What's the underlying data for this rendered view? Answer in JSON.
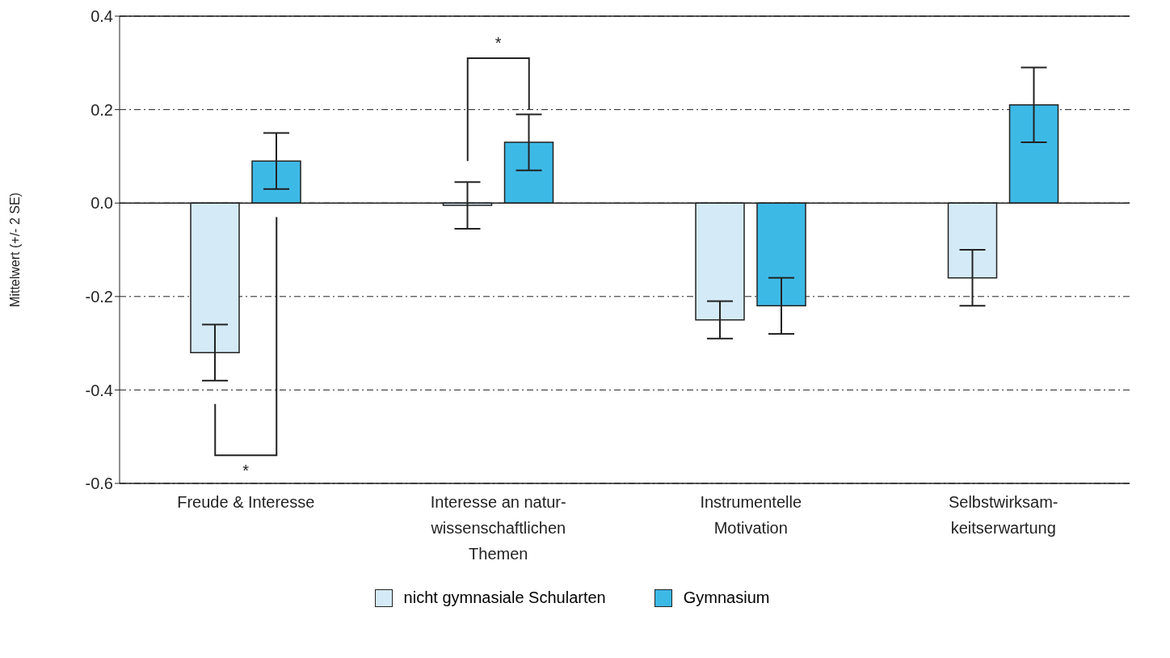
{
  "chart_data": {
    "type": "bar",
    "ylabel": "Mittelwert (+/- 2 SE)",
    "categories": [
      "Freude & Interesse",
      "Interesse an natur-\nwissenschaftlichen\nThemen",
      "Instrumentelle\nMotivation",
      "Selbstwirksam-\nkeitserwartung"
    ],
    "series": [
      {
        "name": "nicht gymnasiale Schularten",
        "color": "#d4ebf7",
        "values": [
          -0.32,
          -0.005,
          -0.25,
          -0.16
        ],
        "errors": [
          0.06,
          0.05,
          0.04,
          0.06
        ]
      },
      {
        "name": "Gymnasium",
        "color": "#3db9e6",
        "values": [
          0.09,
          0.13,
          -0.22,
          0.21
        ],
        "errors": [
          0.06,
          0.06,
          0.06,
          0.08
        ]
      }
    ],
    "ylim": [
      -0.6,
      0.4
    ],
    "yticks": [
      -0.6,
      -0.4,
      -0.2,
      {
        "value": 0,
        "label": "0.0"
      },
      0.2,
      0.4
    ],
    "grid": "y",
    "legend": "bottom",
    "annotations": [
      "*",
      "*"
    ]
  }
}
